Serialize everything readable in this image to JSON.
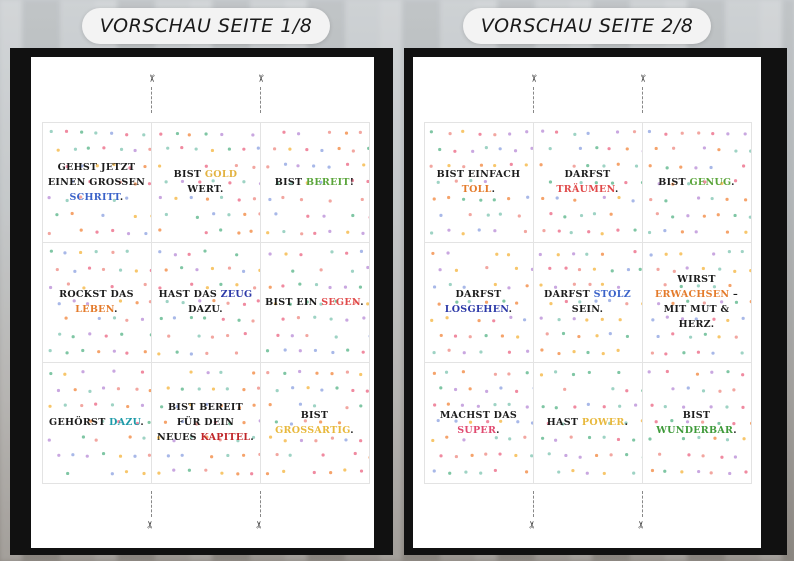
{
  "previews": [
    {
      "title": "VORSCHAU SEITE 1/8",
      "cards": [
        {
          "parts": [
            {
              "t": "GEHST JETZT EINEN GROSSEN ",
              "c": ""
            },
            {
              "t": "SCHRITT",
              "c": "#3b63c9"
            },
            {
              "t": ".",
              "c": ""
            }
          ]
        },
        {
          "parts": [
            {
              "t": "BIST ",
              "c": ""
            },
            {
              "t": "GOLD",
              "c": "#e3b341"
            },
            {
              "t": " WERT.",
              "c": ""
            }
          ]
        },
        {
          "parts": [
            {
              "t": "BIST ",
              "c": ""
            },
            {
              "t": "BEREIT",
              "c": "#5aa53a"
            },
            {
              "t": "!",
              "c": ""
            }
          ]
        },
        {
          "parts": [
            {
              "t": "ROCKST DAS ",
              "c": ""
            },
            {
              "t": "LEBEN",
              "c": "#e47b2b"
            },
            {
              "t": ".",
              "c": ""
            }
          ]
        },
        {
          "parts": [
            {
              "t": "HAST DAS ",
              "c": ""
            },
            {
              "t": "ZEUG",
              "c": "#2d3aa8"
            },
            {
              "t": " DAZU.",
              "c": ""
            }
          ]
        },
        {
          "parts": [
            {
              "t": "BIST EIN ",
              "c": ""
            },
            {
              "t": "SEGEN",
              "c": "#e04a4a"
            },
            {
              "t": ".",
              "c": ""
            }
          ]
        },
        {
          "parts": [
            {
              "t": "GEHÖRST ",
              "c": ""
            },
            {
              "t": "DAZU",
              "c": "#1d9aa8"
            },
            {
              "t": ".",
              "c": ""
            }
          ]
        },
        {
          "parts": [
            {
              "t": "BIST BEREIT FÜR DEIN NEUES ",
              "c": ""
            },
            {
              "t": "KAPITEL",
              "c": "#c0262a"
            },
            {
              "t": ".",
              "c": ""
            }
          ]
        },
        {
          "parts": [
            {
              "t": "BIST ",
              "c": ""
            },
            {
              "t": "GROSSARTIG",
              "c": "#e8b93e"
            },
            {
              "t": ".",
              "c": ""
            }
          ]
        }
      ]
    },
    {
      "title": "VORSCHAU SEITE 2/8",
      "cards": [
        {
          "parts": [
            {
              "t": "BIST EINFACH ",
              "c": ""
            },
            {
              "t": "TOLL",
              "c": "#e47b2b"
            },
            {
              "t": ".",
              "c": ""
            }
          ]
        },
        {
          "parts": [
            {
              "t": "DARFST ",
              "c": ""
            },
            {
              "t": "TRÄUMEN",
              "c": "#e04a4a"
            },
            {
              "t": ".",
              "c": ""
            }
          ]
        },
        {
          "parts": [
            {
              "t": "BIST ",
              "c": ""
            },
            {
              "t": "GENUG",
              "c": "#5aa53a"
            },
            {
              "t": ".",
              "c": ""
            }
          ]
        },
        {
          "parts": [
            {
              "t": "DARFST ",
              "c": ""
            },
            {
              "t": "LOSGEHEN",
              "c": "#2d3aa8"
            },
            {
              "t": ".",
              "c": ""
            }
          ]
        },
        {
          "parts": [
            {
              "t": "DARFST ",
              "c": ""
            },
            {
              "t": "STOLZ",
              "c": "#3b63c9"
            },
            {
              "t": " SEIN.",
              "c": ""
            }
          ]
        },
        {
          "parts": [
            {
              "t": "WIRST ",
              "c": ""
            },
            {
              "t": "ERWACHSEN",
              "c": "#e47b2b"
            },
            {
              "t": " – MIT MUT & HERZ.",
              "c": ""
            }
          ]
        },
        {
          "parts": [
            {
              "t": "MACHST DAS ",
              "c": ""
            },
            {
              "t": "SUPER",
              "c": "#e04a70"
            },
            {
              "t": ".",
              "c": ""
            }
          ]
        },
        {
          "parts": [
            {
              "t": "HAST ",
              "c": ""
            },
            {
              "t": "POWER",
              "c": "#e8b93e"
            },
            {
              "t": ".",
              "c": ""
            }
          ]
        },
        {
          "parts": [
            {
              "t": "BIST ",
              "c": ""
            },
            {
              "t": "WUNDERBAR",
              "c": "#3f9a3a"
            },
            {
              "t": ".",
              "c": ""
            }
          ]
        }
      ]
    }
  ],
  "icons": {
    "cut": "scissors-icon"
  },
  "dot_colors": [
    "#f2a6a0",
    "#9ed3c4",
    "#f7c66b",
    "#a8b8e8",
    "#f5a36b",
    "#c9a7e0",
    "#7fc6a4",
    "#f08aa0"
  ]
}
